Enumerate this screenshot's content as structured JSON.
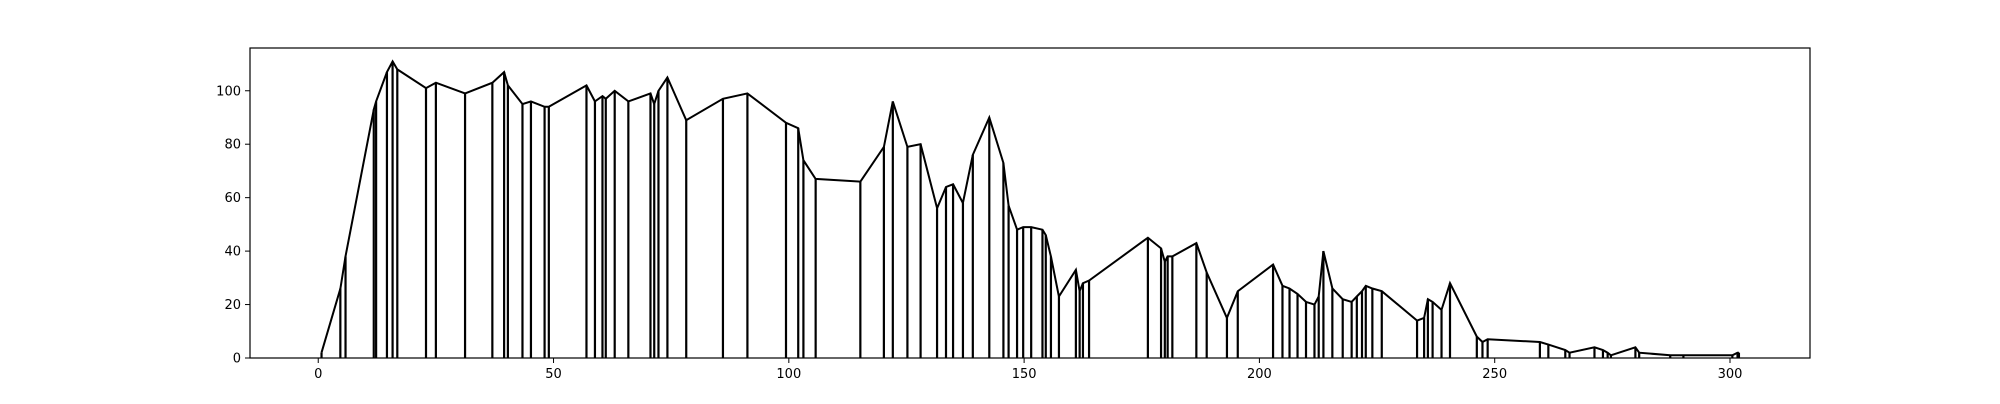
{
  "chart_data": {
    "type": "line",
    "title": "",
    "xlabel": "",
    "ylabel": "",
    "xlim": [
      -14.5,
      317
    ],
    "ylim": [
      0,
      116
    ],
    "xticks": [
      0,
      50,
      100,
      150,
      200,
      250,
      300
    ],
    "yticks": [
      0,
      20,
      40,
      60,
      80,
      100
    ],
    "grid": false,
    "legend": "none",
    "style": {
      "line_color": "#000000",
      "drop_lines": true
    },
    "series": [
      {
        "x": [
          0.7,
          4.7,
          5.8,
          11.8,
          12.3,
          14.6,
          15.8,
          16.8,
          22.9,
          25.0,
          31.2,
          37.0,
          39.5,
          40.3,
          43.4,
          45.2,
          48.1,
          49.0,
          57.0,
          58.8,
          60.4,
          61.1,
          63.0,
          65.9,
          70.6,
          71.4,
          72.3,
          74.2,
          78.2,
          86.0,
          91.2,
          99.4,
          102.0,
          103.1,
          105.7,
          115.2,
          120.2,
          122.1,
          125.2,
          128.0,
          131.5,
          133.4,
          134.9,
          137.0,
          139.1,
          142.6,
          145.6,
          146.7,
          148.5,
          149.8,
          151.5,
          153.9,
          154.6,
          155.7,
          157.4,
          161.0,
          161.8,
          162.5,
          163.8,
          176.3,
          179.1,
          179.9,
          180.5,
          181.5,
          186.6,
          188.8,
          193.1,
          195.4,
          202.9,
          204.9,
          206.4,
          208.1,
          209.9,
          211.7,
          212.6,
          213.6,
          215.5,
          217.7,
          219.6,
          220.7,
          221.8,
          222.6,
          224.0,
          226.0,
          233.5,
          235.0,
          235.8,
          236.8,
          238.7,
          240.5,
          246.2,
          247.4,
          248.5,
          259.6,
          261.4,
          265.0,
          265.9,
          271.2,
          273.0,
          274.0,
          274.7,
          279.9,
          280.7,
          287.3,
          290.1,
          300.5,
          301.6,
          301.9
        ],
        "y": [
          2,
          26,
          38,
          93,
          96,
          107,
          111,
          108,
          101,
          103,
          99,
          103,
          107,
          102,
          95,
          96,
          94,
          94,
          102,
          96,
          98,
          97,
          100,
          96,
          99,
          95,
          100,
          105,
          89,
          97,
          99,
          88,
          86,
          74,
          67,
          66,
          79,
          96,
          79,
          80,
          56,
          64,
          65,
          58,
          76,
          90,
          73,
          57,
          48,
          49,
          49,
          48,
          46,
          38,
          23,
          33,
          25,
          28,
          29,
          45,
          41,
          36,
          38,
          38,
          43,
          32,
          15,
          25,
          35,
          27,
          26,
          24,
          21,
          20,
          23,
          40,
          26,
          22,
          21,
          23,
          25,
          27,
          26,
          25,
          14,
          15,
          22,
          21,
          18,
          28,
          8,
          6,
          7,
          6,
          5,
          3,
          2,
          4,
          3,
          2,
          1,
          4,
          2,
          1,
          1,
          1,
          2,
          2
        ]
      }
    ]
  }
}
